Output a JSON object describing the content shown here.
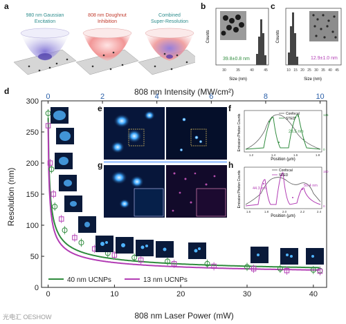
{
  "panels": {
    "a": "a",
    "b": "b",
    "c": "c",
    "d": "d",
    "e": "e",
    "f": "f",
    "g": "g",
    "h": "h"
  },
  "panel_a": {
    "captions": [
      "980 nm Gaussian\nExcitation",
      "808 nm Doughnut\nInhibition",
      "Combined\nSuper-Resolution"
    ],
    "caption_colors": [
      "#2c8c8c",
      "#c0392b",
      "#2c8c8c"
    ]
  },
  "panel_b": {
    "size_label": "39.8±0.8 nm",
    "xlabel": "Size (nm)",
    "ylabel": "Counts",
    "xticks": [
      "30",
      "35",
      "40",
      "45"
    ],
    "yticks": [
      "0",
      "5",
      "10",
      "15",
      "20",
      "25"
    ]
  },
  "panel_c": {
    "size_label": "12.9±1.0 nm",
    "xlabel": "Size (nm)",
    "ylabel": "Counts",
    "xticks": [
      "10",
      "15",
      "20",
      "25",
      "30",
      "35",
      "40",
      "45"
    ],
    "yticks": [
      "0",
      "5",
      "10",
      "15",
      "20",
      "25",
      "30",
      "35"
    ]
  },
  "panel_d": {
    "top_axis_label": "808 nm Intensity (MW/cm²)",
    "xlabel": "808 nm Laser Power (mW)",
    "ylabel": "Resolution (nm)",
    "legend": [
      "40 nm UCNPs",
      "13 nm UCNPs"
    ],
    "top_ticks": [
      "0",
      "2",
      "4",
      "6",
      "8",
      "10"
    ],
    "bottom_ticks": [
      "0",
      "10",
      "20",
      "30",
      "40"
    ],
    "y_ticks": [
      "0",
      "50",
      "100",
      "150",
      "200",
      "250",
      "300"
    ]
  },
  "panel_f": {
    "legend": [
      "Confocal",
      "STED"
    ],
    "annotation": "28.5 nm",
    "xlabel": "Position (μm)",
    "ylabel": "Emission Photon Counts",
    "xticks": [
      "1.2",
      "1.4",
      "1.6",
      "1.8"
    ],
    "yticks_left": [
      "0",
      "20",
      "40",
      "60",
      "80",
      "100",
      "120",
      "140"
    ],
    "yticks_right": [
      "0",
      "25",
      "50",
      "75",
      "100",
      "125"
    ]
  },
  "panel_h": {
    "legend": [
      "Confocal",
      "STED"
    ],
    "annotations": [
      "44.3 nm",
      "50.4 nm"
    ],
    "xlabel": "Position (μm)",
    "ylabel": "Emission Photon Counts",
    "xticks": [
      "1.6",
      "1.8",
      "2.0",
      "2.2",
      "2.4"
    ],
    "yticks_left": [
      "0",
      "20",
      "40",
      "60",
      "80",
      "100"
    ],
    "yticks_right": [
      "0",
      "20",
      "40",
      "60",
      "80",
      "100",
      "150"
    ]
  },
  "watermark": "光电汇 OESHOW",
  "chart_data": [
    {
      "type": "scatter",
      "title": "",
      "xlabel": "808 nm Laser Power (mW)",
      "ylabel": "Resolution (nm)",
      "x2label": "808 nm Intensity (MW/cm²)",
      "xlim": [
        -1,
        42
      ],
      "ylim": [
        0,
        300
      ],
      "x2lim": [
        -0.24,
        10.24
      ],
      "series": [
        {
          "name": "40 nm UCNPs",
          "color": "#2e8b3c",
          "x": [
            0,
            0.5,
            1,
            2.5,
            5,
            9,
            13,
            18,
            24,
            30,
            35,
            40,
            41
          ],
          "y": [
            280,
            190,
            130,
            92,
            72,
            55,
            48,
            42,
            38,
            33,
            30,
            28,
            27
          ]
        },
        {
          "name": "13 nm UCNPs",
          "color": "#b23cb4",
          "x": [
            0,
            0.3,
            0.8,
            2,
            4,
            7,
            10,
            14,
            19,
            25,
            31,
            36,
            41
          ],
          "y": [
            260,
            200,
            150,
            110,
            80,
            62,
            52,
            44,
            38,
            34,
            30,
            27,
            26
          ]
        }
      ]
    }
  ]
}
